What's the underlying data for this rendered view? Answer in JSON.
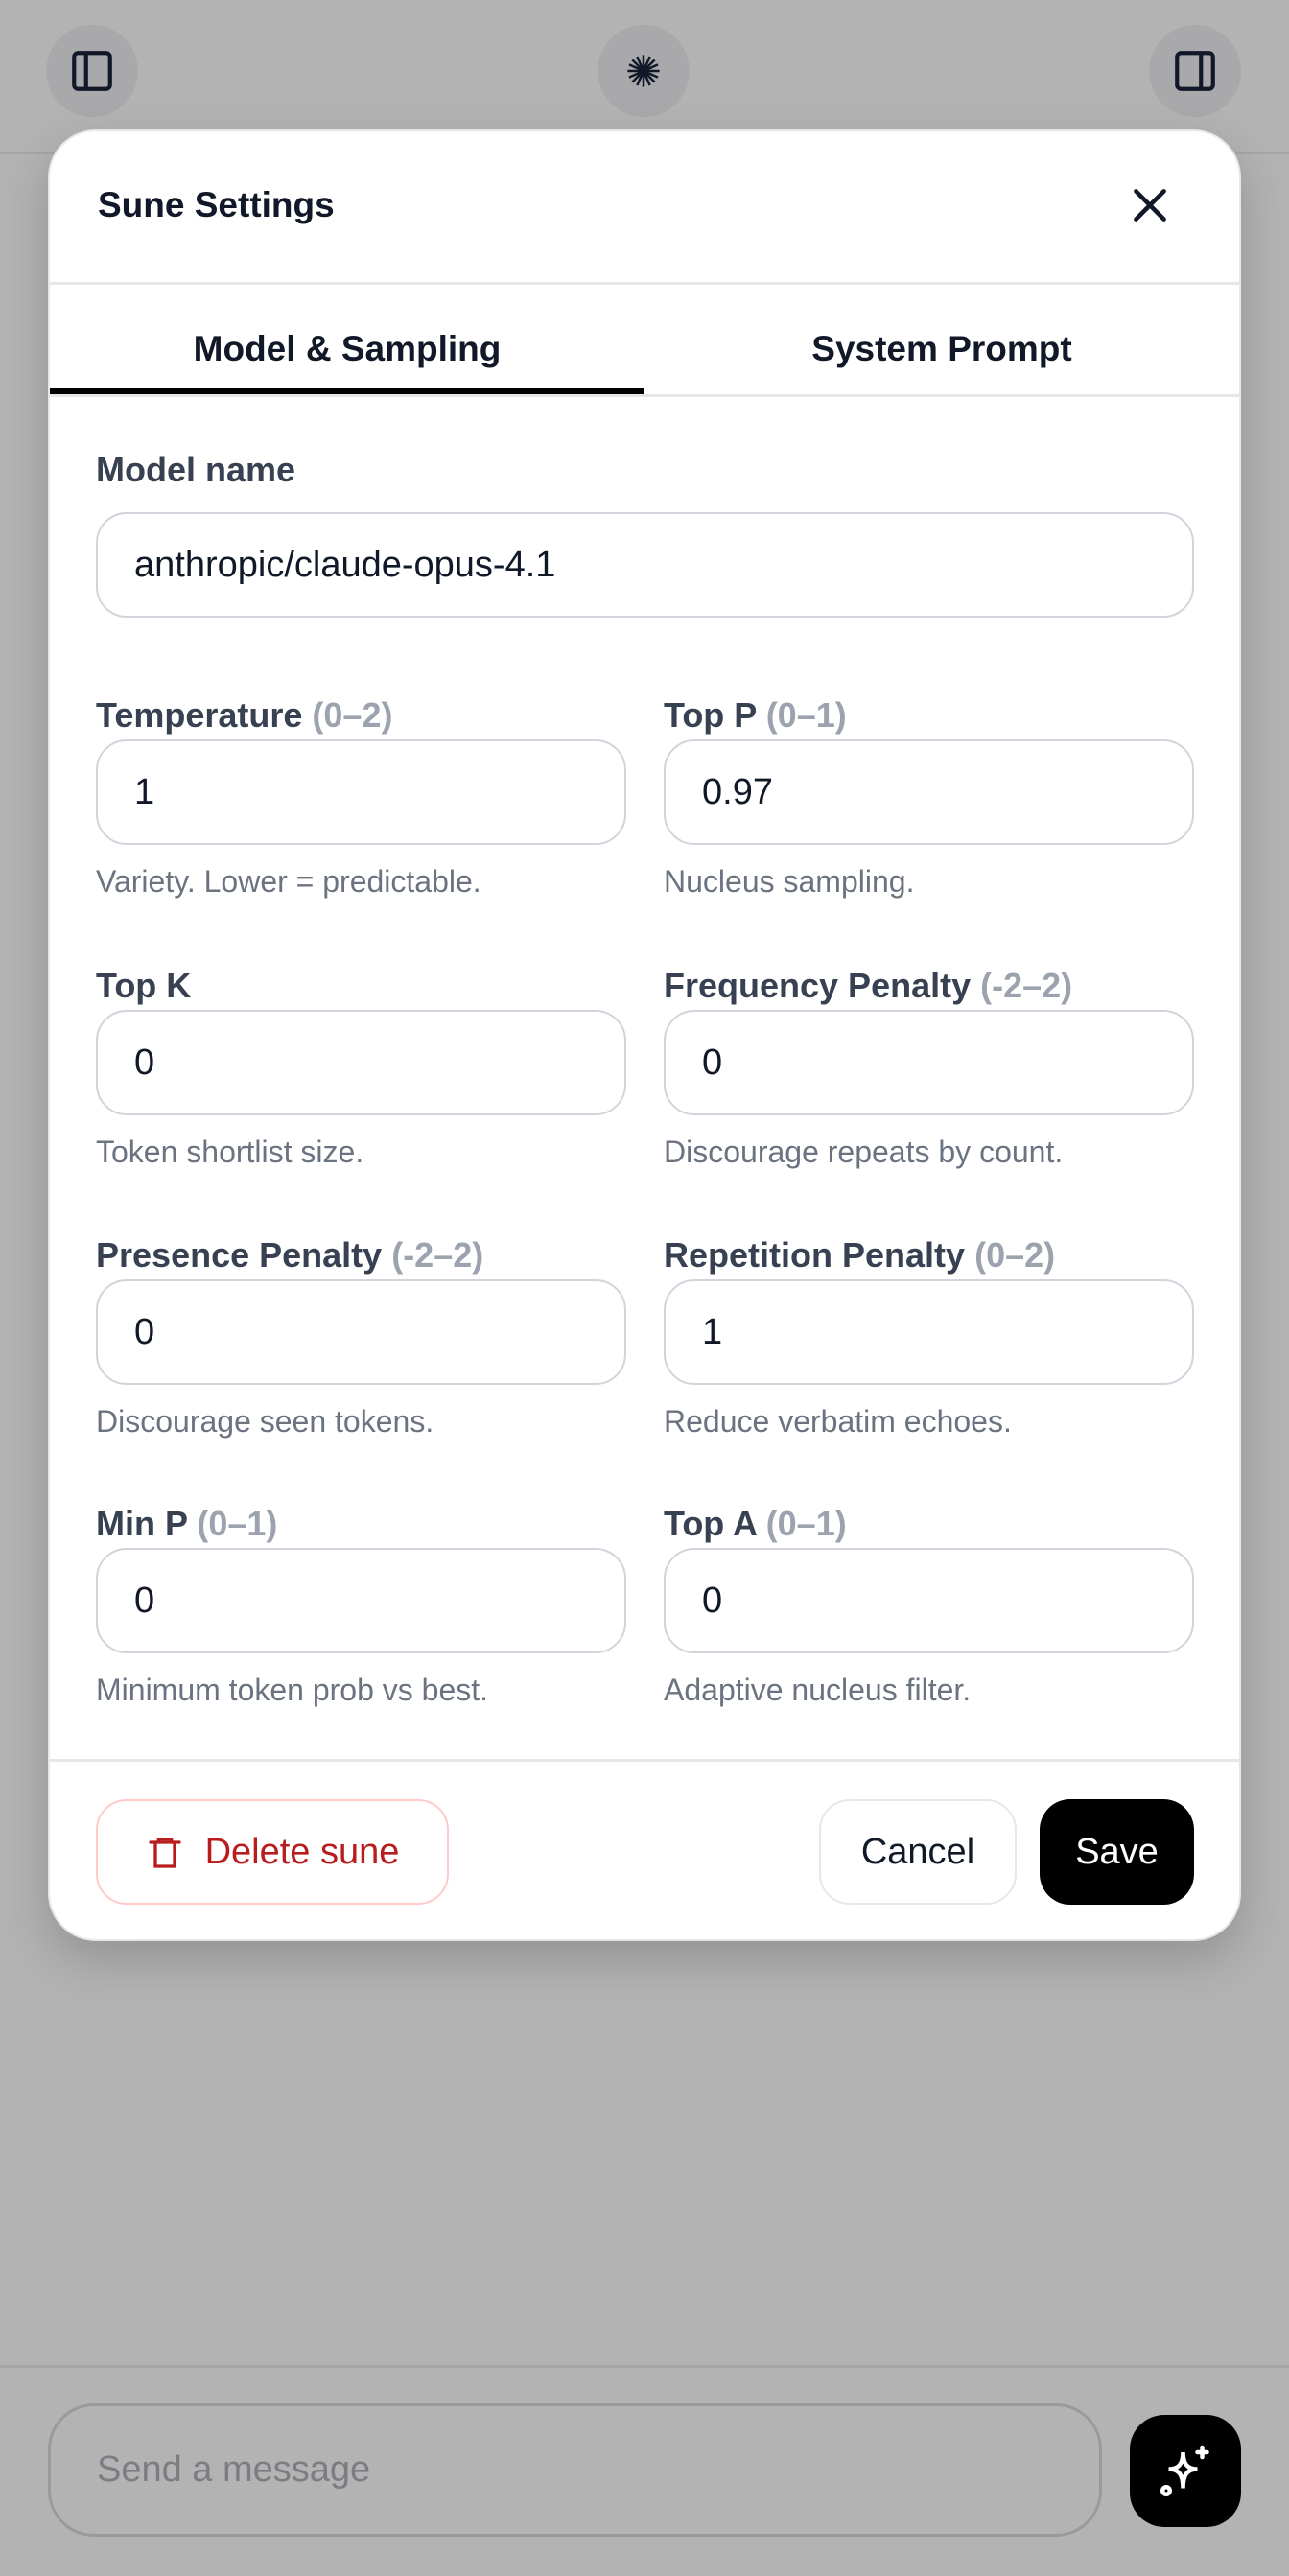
{
  "topbar": {
    "left_icon": "sidebar-left-icon",
    "center_icon": "starburst-icon",
    "right_icon": "sidebar-right-icon"
  },
  "modal": {
    "title": "Sune Settings",
    "close_icon": "close-icon",
    "tabs": [
      {
        "label": "Model & Sampling",
        "active": true
      },
      {
        "label": "System Prompt",
        "active": false
      }
    ],
    "model_name": {
      "label": "Model name",
      "value": "anthropic/claude-opus-4.1"
    },
    "fields": [
      {
        "label": "Temperature",
        "range": "(0–2)",
        "value": "1",
        "help": "Variety. Lower = predictable."
      },
      {
        "label": "Top P",
        "range": "(0–1)",
        "value": "0.97",
        "help": "Nucleus sampling."
      },
      {
        "label": "Top K",
        "range": "",
        "value": "0",
        "help": "Token shortlist size."
      },
      {
        "label": "Frequency Penalty",
        "range": "(-2–2)",
        "value": "0",
        "help": "Discourage repeats by count."
      },
      {
        "label": "Presence Penalty",
        "range": "(-2–2)",
        "value": "0",
        "help": "Discourage seen tokens."
      },
      {
        "label": "Repetition Penalty",
        "range": "(0–2)",
        "value": "1",
        "help": "Reduce verbatim echoes."
      },
      {
        "label": "Min P",
        "range": "(0–1)",
        "value": "0",
        "help": "Minimum token prob vs best."
      },
      {
        "label": "Top A",
        "range": "(0–1)",
        "value": "0",
        "help": "Adaptive nucleus filter."
      }
    ],
    "footer": {
      "delete_label": "Delete sune",
      "delete_icon": "trash-icon",
      "cancel_label": "Cancel",
      "save_label": "Save"
    }
  },
  "composer": {
    "placeholder": "Send a message",
    "send_icon": "sparkles-icon"
  },
  "colors": {
    "danger": "#b91c1c",
    "primary": "#000000",
    "overlay": "#b3b3b3"
  }
}
